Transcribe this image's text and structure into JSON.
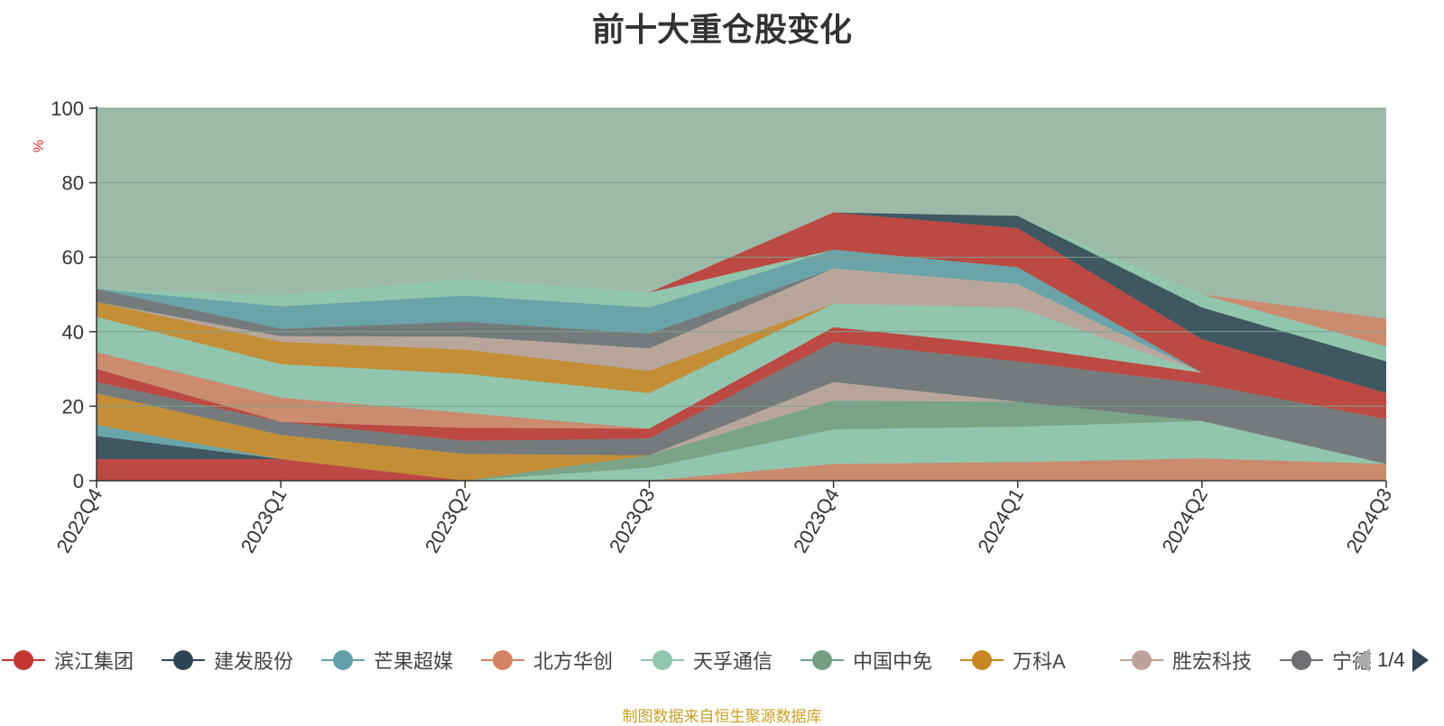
{
  "chart_data": {
    "type": "area",
    "stacked": true,
    "title": "前十大重仓股变化",
    "ylabel": "%",
    "ylim": [
      0,
      100
    ],
    "yticks": [
      0,
      20,
      40,
      60,
      80,
      100
    ],
    "grid": true,
    "categories": [
      "2022Q4",
      "2023Q1",
      "2023Q2",
      "2023Q3",
      "2023Q4",
      "2024Q1",
      "2024Q2",
      "2024Q3"
    ],
    "series": [
      {
        "name": "滨江集团",
        "color": "#c23531",
        "values": [
          5.8,
          5.8,
          0,
          0,
          0,
          0,
          0,
          0
        ]
      },
      {
        "name": "北方华创",
        "color": "#d48265",
        "values": [
          0,
          0,
          0,
          0,
          4.5,
          5.0,
          6.0,
          4.5
        ]
      },
      {
        "name": "天孚通信",
        "color": "#91c7ae",
        "values": [
          0,
          0,
          0,
          3.5,
          9.3,
          9.5,
          10.0,
          0
        ]
      },
      {
        "name": "中国中免",
        "color": "#749f83",
        "values": [
          0,
          0,
          0,
          3.3,
          7.7,
          6.7,
          0,
          0
        ]
      },
      {
        "name": "建发股份",
        "color": "#2f4554",
        "values": [
          6.2,
          0,
          0,
          0,
          0,
          0,
          0,
          0
        ]
      },
      {
        "name": "芒果超媒",
        "color": "#61a0a8",
        "values": [
          3.0,
          0,
          0,
          0,
          0,
          0,
          0,
          0
        ]
      },
      {
        "name": "万科A",
        "color": "#ca8622",
        "values": [
          8.5,
          6.5,
          7.2,
          0,
          0,
          0,
          0,
          0
        ]
      },
      {
        "name": "胜宏科技",
        "color": "#bda29a",
        "values": [
          0,
          0,
          0,
          0,
          5.0,
          0,
          0,
          0
        ]
      },
      {
        "name": "宁德时代",
        "color": "#6e7074",
        "values": [
          3.0,
          3.5,
          3.5,
          4.5,
          10.7,
          10.8,
          10.0,
          12.0
        ]
      },
      {
        "name": "",
        "color": "#c23531",
        "values": [
          3.5,
          0,
          3.5,
          2.7,
          4.0,
          4.0,
          3.0,
          0
        ]
      },
      {
        "name": "",
        "color": "#d48265",
        "values": [
          4.5,
          6.5,
          4.0,
          0,
          0,
          0,
          0,
          0
        ]
      },
      {
        "name": "",
        "color": "#91c7ae",
        "values": [
          9.5,
          9.0,
          10.5,
          9.5,
          6.3,
          10.5,
          0,
          0
        ]
      },
      {
        "name": "",
        "color": "#ca8622",
        "values": [
          4.0,
          6.0,
          6.5,
          6.0,
          0,
          0,
          0,
          0
        ]
      },
      {
        "name": "",
        "color": "#bda29a",
        "values": [
          0,
          1.5,
          3.5,
          6.0,
          9.5,
          6.3,
          0,
          0
        ]
      },
      {
        "name": "",
        "color": "#6e7074",
        "values": [
          3.5,
          2.0,
          4.0,
          4.0,
          0,
          0,
          0,
          0
        ]
      },
      {
        "name": "",
        "color": "#61a0a8",
        "values": [
          0,
          6.0,
          7.0,
          7.0,
          5.0,
          4.5,
          0,
          0
        ]
      },
      {
        "name": "",
        "color": "#91c7ae",
        "values": [
          0,
          3.0,
          4.5,
          4.0,
          0,
          0,
          0,
          0
        ]
      },
      {
        "name": "",
        "color": "#c23531",
        "values": [
          0,
          0,
          0,
          0,
          10.0,
          10.5,
          9.0,
          7.0
        ]
      },
      {
        "name": "",
        "color": "#2f4554",
        "values": [
          0,
          0,
          0,
          0,
          0,
          3.3,
          8.5,
          8.5
        ]
      },
      {
        "name": "",
        "color": "#91c7ae",
        "values": [
          0,
          0,
          0,
          0,
          0,
          0,
          3.5,
          4.0
        ]
      },
      {
        "name": "",
        "color": "#d48265",
        "values": [
          0,
          0,
          0,
          0,
          0,
          0,
          0,
          7.5
        ]
      }
    ]
  },
  "legend": {
    "items": [
      {
        "label": "滨江集团",
        "color": "#c23531"
      },
      {
        "label": "建发股份",
        "color": "#2f4554"
      },
      {
        "label": "芒果超媒",
        "color": "#61a0a8"
      },
      {
        "label": "北方华创",
        "color": "#d48265"
      },
      {
        "label": "天孚通信",
        "color": "#91c7ae"
      },
      {
        "label": "中国中免",
        "color": "#749f83"
      },
      {
        "label": "万科A",
        "color": "#ca8622"
      },
      {
        "label": "胜宏科技",
        "color": "#bda29a"
      },
      {
        "label": "宁德",
        "color": "#6e7074"
      }
    ],
    "page": "1/4",
    "prev_icon": "triangle-left-icon",
    "next_icon": "triangle-right-icon"
  },
  "source_note": "制图数据来自恒生聚源数据库",
  "colors": {
    "background_fill": "#9dbaa9",
    "axis": "#333333",
    "grid": "#7fa090",
    "ylabel": "#e03030",
    "pager_active": "#2f4554",
    "pager_inactive": "#aaaaaa"
  }
}
